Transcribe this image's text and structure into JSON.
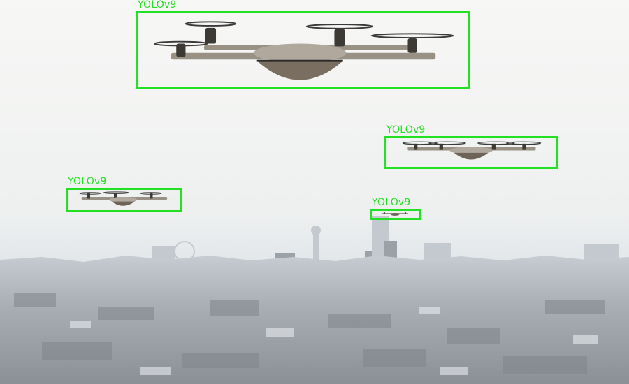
{
  "detections": [
    {
      "label": "YOLOv9",
      "object": "drone"
    },
    {
      "label": "YOLOv9",
      "object": "drone"
    },
    {
      "label": "YOLOv9",
      "object": "drone"
    },
    {
      "label": "YOLOv9",
      "object": "drone"
    }
  ],
  "colors": {
    "box": "#22e022",
    "sky": "#f4f4f2",
    "haze": "#dfe4e8",
    "city": "#8c939a"
  }
}
